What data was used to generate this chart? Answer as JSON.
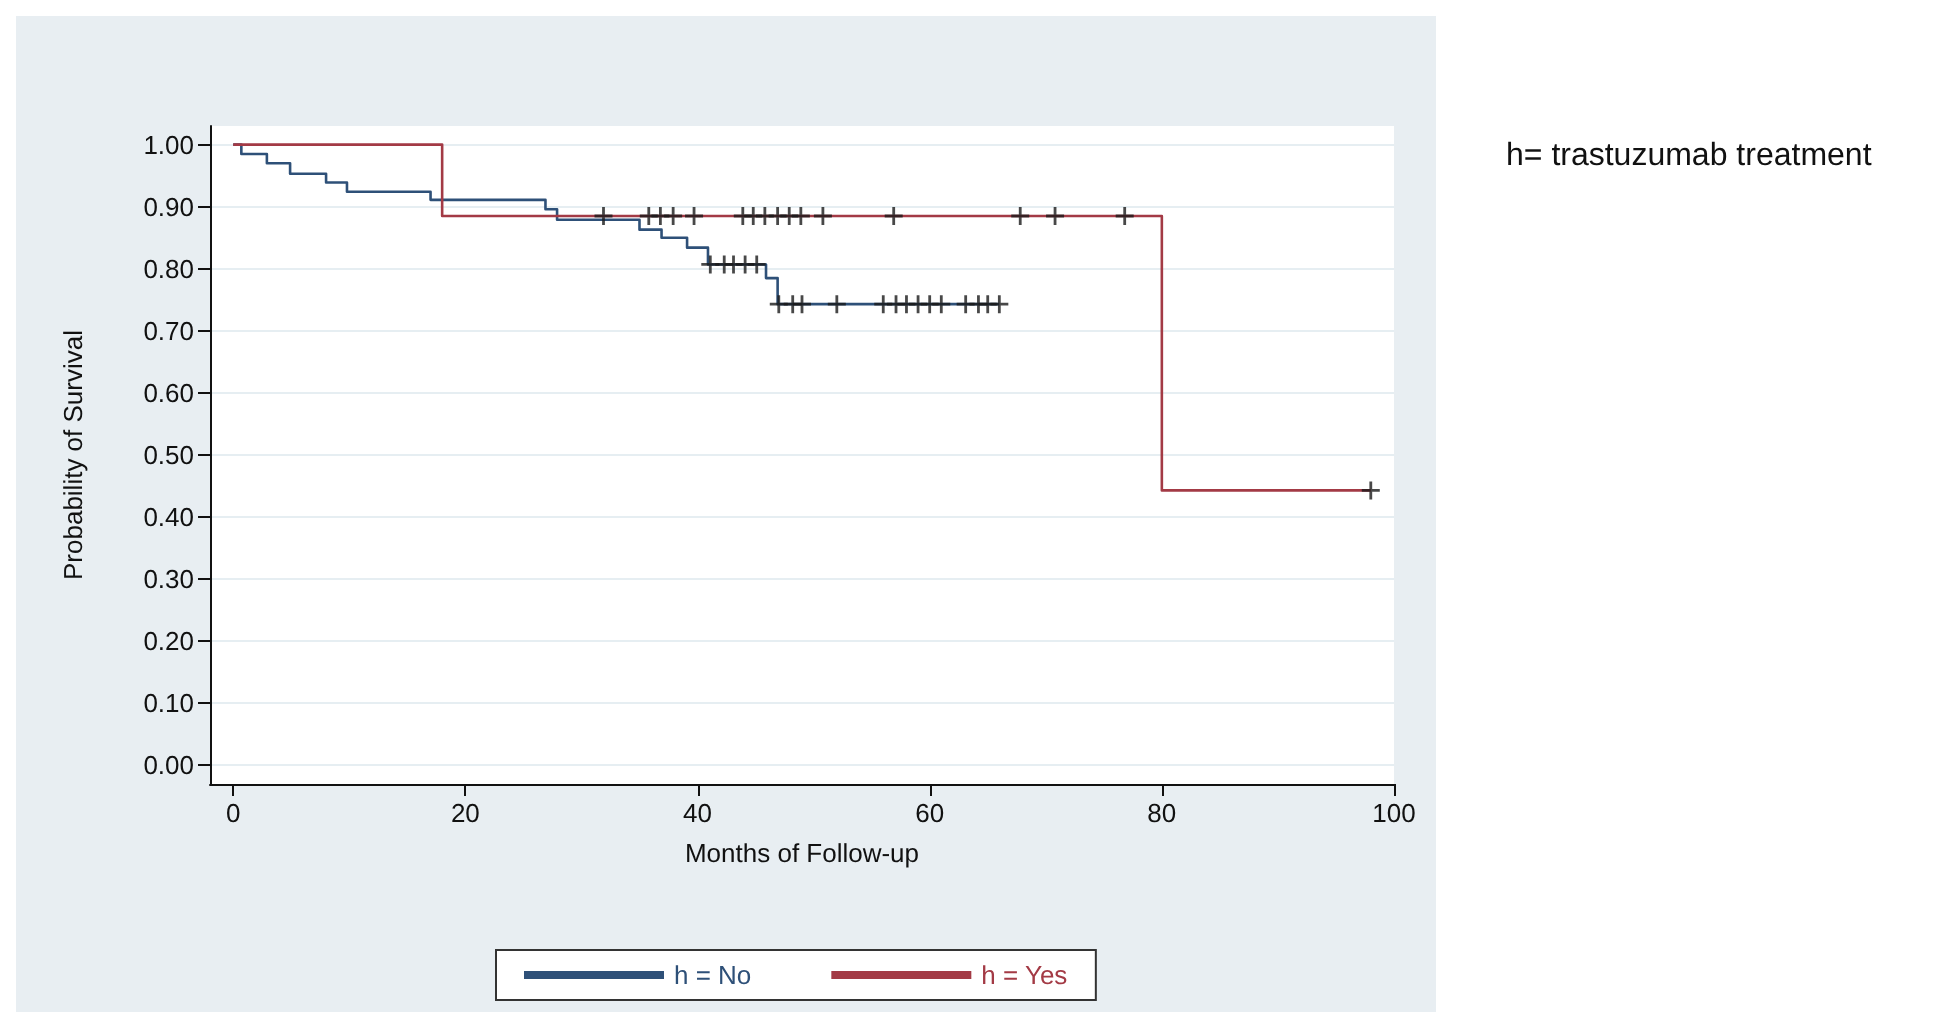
{
  "chart_data": {
    "type": "step",
    "xlabel": "Months of Follow-up",
    "ylabel": "Probability of Survival",
    "annotations": [
      "h= trastuzumab treatment"
    ],
    "xlim": [
      -2,
      100
    ],
    "xticks": [
      0,
      20,
      40,
      60,
      80,
      100
    ],
    "ylim": [
      -0.03,
      1.03
    ],
    "yticks": [
      {
        "value": 0,
        "label": "0.00"
      },
      {
        "value": 0.1,
        "label": "0.10"
      },
      {
        "value": 0.2,
        "label": "0.20"
      },
      {
        "value": 0.3,
        "label": "0.30"
      },
      {
        "value": 0.4,
        "label": "0.40"
      },
      {
        "value": 0.5,
        "label": "0.50"
      },
      {
        "value": 0.6,
        "label": "0.60"
      },
      {
        "value": 0.7,
        "label": "0.70"
      },
      {
        "value": 0.8,
        "label": "0.80"
      },
      {
        "value": 0.9,
        "label": "0.90"
      },
      {
        "value": 1,
        "label": "1.00"
      }
    ],
    "grid": "y",
    "legend": "bottom",
    "line_style": "solid",
    "series": [
      {
        "name": "h = No",
        "color": "#2e5078",
        "x": [
          0,
          0.7,
          2.9,
          4.9,
          8.0,
          9.8,
          17.0,
          26.9,
          27.9,
          35.0,
          36.9,
          39.1,
          40.9,
          45.9,
          46.9,
          66.0
        ],
        "values": [
          1.0,
          0.985,
          0.97,
          0.953,
          0.939,
          0.924,
          0.911,
          0.896,
          0.879,
          0.863,
          0.85,
          0.834,
          0.807,
          0.785,
          0.743,
          0.743
        ]
      },
      {
        "name": "h = Yes",
        "color": "#a33a45",
        "x": [
          0,
          18,
          80,
          98
        ],
        "values": [
          1.0,
          0.885,
          0.443,
          0.443
        ]
      },
      {
        "type": "scatter",
        "color": "#1a1a1a",
        "x": [
          41.1,
          42.3,
          43.1,
          44.1,
          45.1,
          47.0,
          48.2,
          49.0,
          52.0,
          56.0,
          57.1,
          58.0,
          59.0,
          60.0,
          61.0,
          63.1,
          64.2,
          65.0,
          66.0
        ],
        "values": [
          0.807,
          0.807,
          0.807,
          0.807,
          0.807,
          0.743,
          0.743,
          0.743,
          0.743,
          0.743,
          0.743,
          0.743,
          0.743,
          0.743,
          0.743,
          0.743,
          0.743,
          0.743,
          0.743
        ]
      },
      {
        "type": "scatter",
        "color": "#1a1a1a",
        "x": [
          31.9,
          35.8,
          36.8,
          37.9,
          39.7,
          43.9,
          44.8,
          45.8,
          46.9,
          47.9,
          48.9,
          50.8,
          56.9,
          67.8,
          70.8,
          76.8,
          98.0
        ],
        "values": [
          0.885,
          0.885,
          0.885,
          0.885,
          0.885,
          0.885,
          0.885,
          0.885,
          0.885,
          0.885,
          0.885,
          0.885,
          0.885,
          0.885,
          0.885,
          0.885,
          0.443
        ]
      }
    ]
  }
}
